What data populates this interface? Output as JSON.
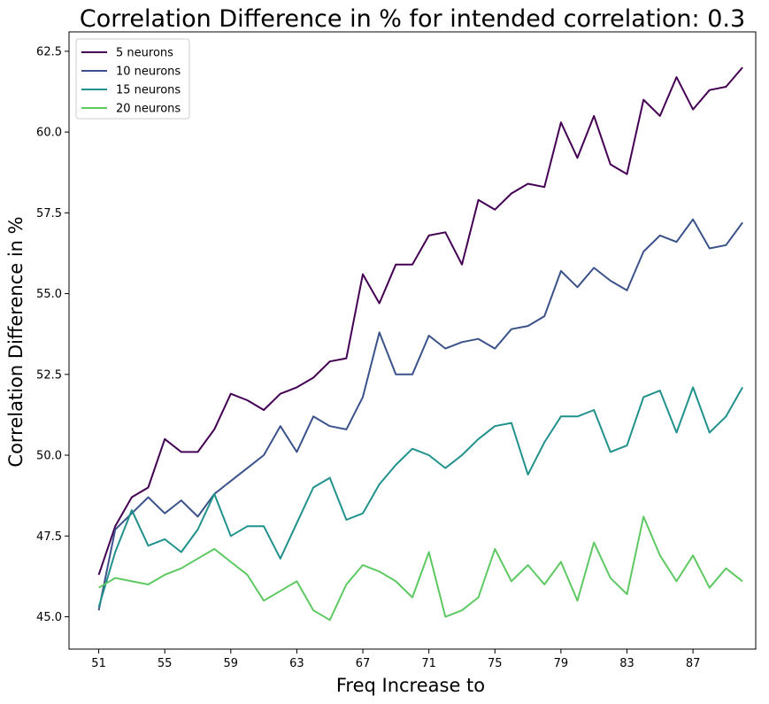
{
  "chart_data": {
    "type": "line",
    "title": "Correlation Difference in % for intended correlation:  0.3",
    "xlabel": "Freq Increase to",
    "ylabel": "Correlation Difference in %",
    "xlim": [
      49.2,
      90.8
    ],
    "ylim": [
      44.0,
      63.1
    ],
    "xticks": [
      51,
      55,
      59,
      63,
      67,
      71,
      75,
      79,
      83,
      87
    ],
    "xtick_labels": [
      "51",
      "55",
      "59",
      "63",
      "67",
      "71",
      "75",
      "79",
      "83",
      "87"
    ],
    "yticks": [
      45.0,
      47.5,
      50.0,
      52.5,
      55.0,
      57.5,
      60.0,
      62.5
    ],
    "ytick_labels": [
      "45.0",
      "47.5",
      "50.0",
      "52.5",
      "55.0",
      "57.5",
      "60.0",
      "62.5"
    ],
    "grid": false,
    "legend_position": "top-left",
    "x": [
      51,
      52,
      53,
      54,
      55,
      56,
      57,
      58,
      59,
      60,
      61,
      62,
      63,
      64,
      65,
      66,
      67,
      68,
      69,
      70,
      71,
      72,
      73,
      74,
      75,
      76,
      77,
      78,
      79,
      80,
      81,
      82,
      83,
      84,
      85,
      86,
      87,
      88,
      89,
      90
    ],
    "series": [
      {
        "name": "5 neurons",
        "color": "#440154",
        "values": [
          46.3,
          47.8,
          48.7,
          49.0,
          50.5,
          50.1,
          50.1,
          50.8,
          51.9,
          51.7,
          51.4,
          51.9,
          52.1,
          52.4,
          52.9,
          53.0,
          55.6,
          54.7,
          55.9,
          55.9,
          56.8,
          56.9,
          55.9,
          57.9,
          57.6,
          58.1,
          58.4,
          58.3,
          60.3,
          59.2,
          60.5,
          59.0,
          58.7,
          61.0,
          60.5,
          61.7,
          60.7,
          61.3,
          61.4,
          62.0
        ]
      },
      {
        "name": "10 neurons",
        "color": "#3b528b",
        "values": [
          45.2,
          47.7,
          48.2,
          48.7,
          48.2,
          48.6,
          48.1,
          48.8,
          49.2,
          49.6,
          50.0,
          50.9,
          50.1,
          51.2,
          50.9,
          50.8,
          51.8,
          53.8,
          52.5,
          52.5,
          53.7,
          53.3,
          53.5,
          53.6,
          53.3,
          53.9,
          54.0,
          54.3,
          55.7,
          55.2,
          55.8,
          55.4,
          55.1,
          56.3,
          56.8,
          56.6,
          57.3,
          56.4,
          56.5,
          57.2
        ]
      },
      {
        "name": "15 neurons",
        "color": "#21918c",
        "values": [
          45.3,
          47.0,
          48.3,
          47.2,
          47.4,
          47.0,
          47.7,
          48.8,
          47.5,
          47.8,
          47.8,
          46.8,
          47.9,
          49.0,
          49.3,
          48.0,
          48.2,
          49.1,
          49.7,
          50.2,
          50.0,
          49.6,
          50.0,
          50.5,
          50.9,
          51.0,
          49.4,
          50.4,
          51.2,
          51.2,
          51.4,
          50.1,
          50.3,
          51.8,
          52.0,
          50.7,
          52.1,
          50.7,
          51.2,
          52.1
        ]
      },
      {
        "name": "20 neurons",
        "color": "#5ec962",
        "values": [
          45.9,
          46.2,
          46.1,
          46.0,
          46.3,
          46.5,
          46.8,
          47.1,
          46.7,
          46.3,
          45.5,
          45.8,
          46.1,
          45.2,
          44.9,
          46.0,
          46.6,
          46.4,
          46.1,
          45.6,
          47.0,
          45.0,
          45.2,
          45.6,
          47.1,
          46.1,
          46.6,
          46.0,
          46.7,
          45.5,
          47.3,
          46.2,
          45.7,
          48.1,
          46.9,
          46.1,
          46.9,
          45.9,
          46.5,
          46.1
        ]
      }
    ]
  }
}
